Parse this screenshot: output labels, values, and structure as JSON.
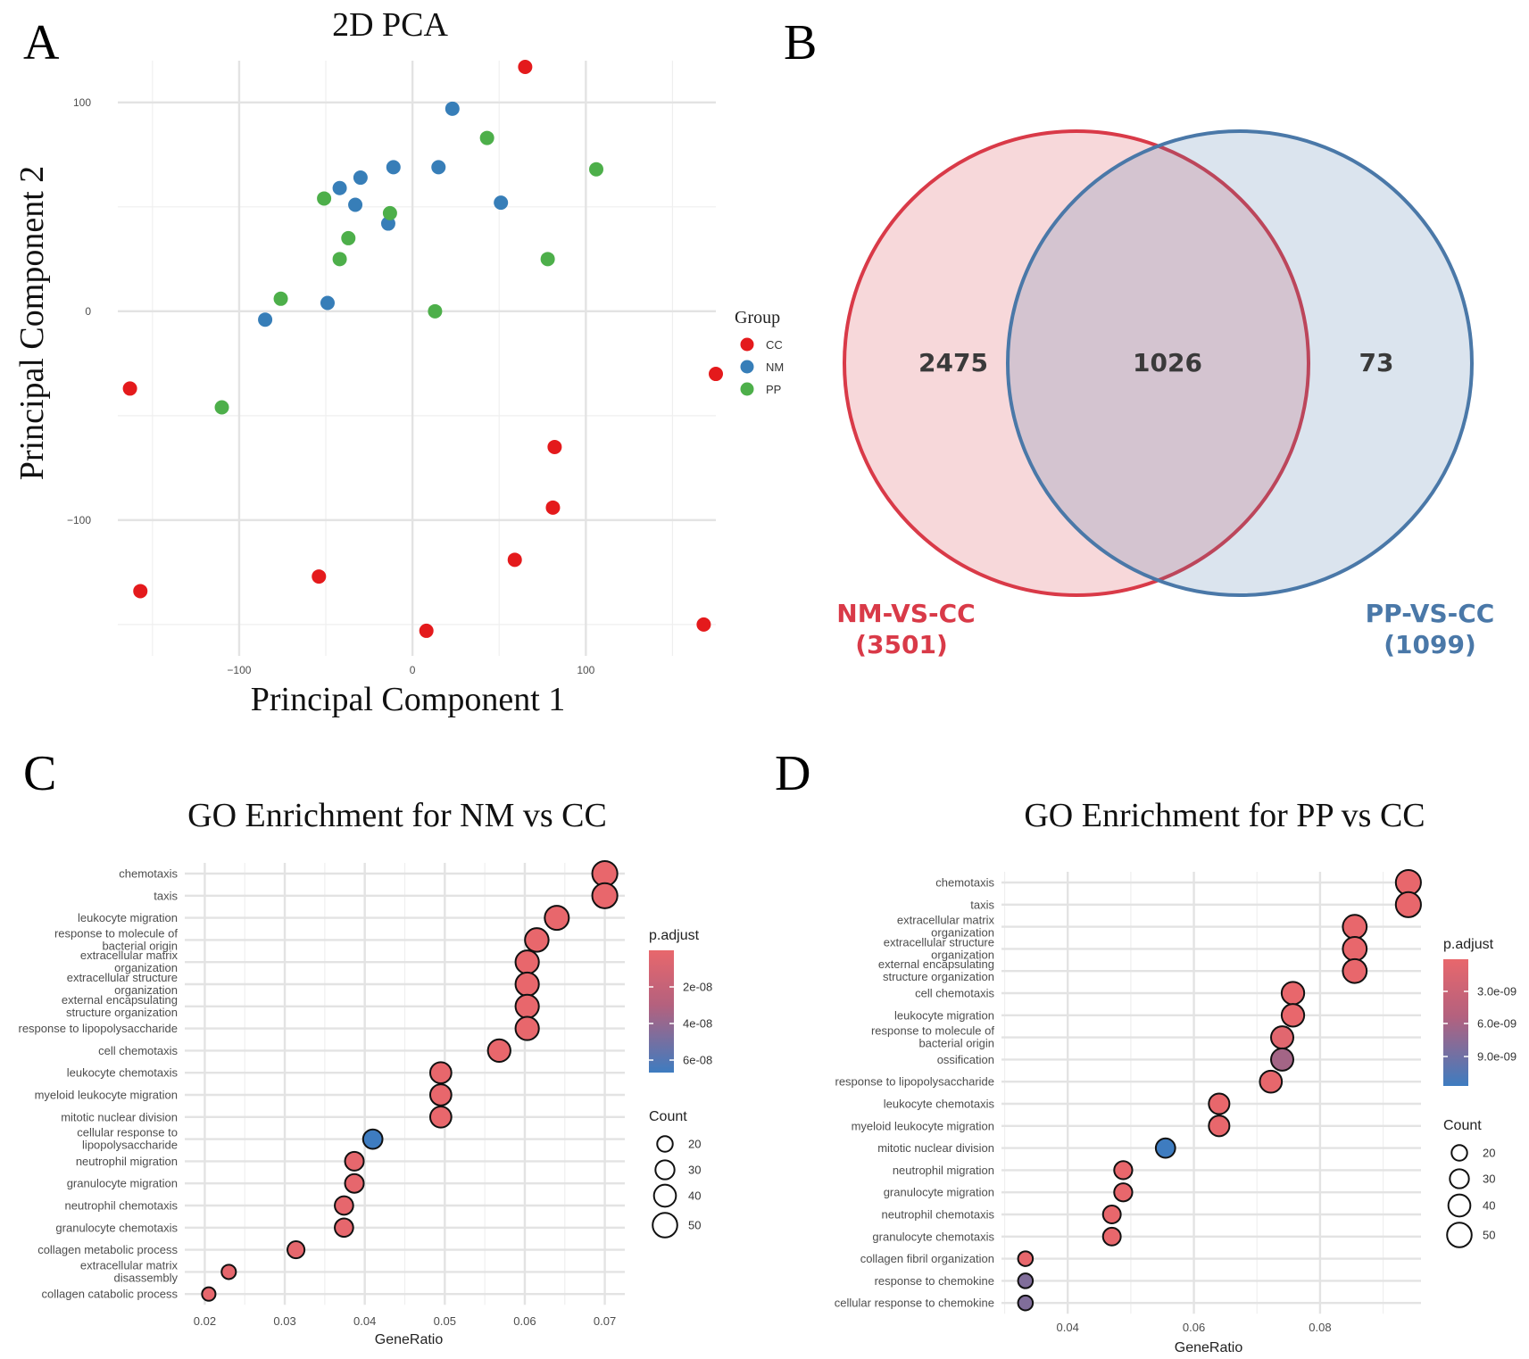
{
  "panels": {
    "A": "A",
    "B": "B",
    "C": "C",
    "D": "D"
  },
  "chart_data": [
    {
      "id": "pca",
      "type": "scatter",
      "title": "2D PCA",
      "xlabel": "Principal Component 1",
      "ylabel": "Principal Component 2",
      "xlim": [
        -170,
        175
      ],
      "ylim": [
        -165,
        120
      ],
      "xticks": [
        -100,
        0,
        100
      ],
      "xtick_labels": [
        "−100",
        "0",
        "100"
      ],
      "yticks": [
        100,
        0,
        -100
      ],
      "ytick_labels": [
        "100",
        "0",
        "−100"
      ],
      "legend": {
        "title": "Group",
        "position": "right"
      },
      "colors": {
        "CC": "#e41a1c",
        "NM": "#377eb8",
        "PP": "#4daf4a"
      },
      "series": [
        {
          "name": "CC",
          "points": [
            [
              65,
              117
            ],
            [
              -163,
              -37
            ],
            [
              175,
              -30
            ],
            [
              82,
              -65
            ],
            [
              81,
              -94
            ],
            [
              59,
              -119
            ],
            [
              -54,
              -127
            ],
            [
              -157,
              -134
            ],
            [
              8,
              -153
            ],
            [
              168,
              -150
            ]
          ]
        },
        {
          "name": "NM",
          "points": [
            [
              23,
              97
            ],
            [
              -42,
              59
            ],
            [
              -30,
              64
            ],
            [
              -11,
              69
            ],
            [
              15,
              69
            ],
            [
              -33,
              51
            ],
            [
              51,
              52
            ],
            [
              -14,
              42
            ],
            [
              -49,
              4
            ],
            [
              -85,
              -4
            ]
          ]
        },
        {
          "name": "PP",
          "points": [
            [
              43,
              83
            ],
            [
              106,
              68
            ],
            [
              -51,
              54
            ],
            [
              -13,
              47
            ],
            [
              -37,
              35
            ],
            [
              78,
              25
            ],
            [
              -42,
              25
            ],
            [
              -76,
              6
            ],
            [
              13,
              0
            ],
            [
              -110,
              -46
            ]
          ]
        }
      ]
    },
    {
      "id": "venn",
      "type": "venn",
      "sets": [
        {
          "name": "NM-VS-CC",
          "total": "(3501)",
          "only": "2475",
          "color": "#d93a48"
        },
        {
          "name": "PP-VS-CC",
          "total": "(1099)",
          "only": "73",
          "color": "#4a78a8"
        }
      ],
      "intersection": "1026"
    },
    {
      "id": "go_nm",
      "type": "scatter",
      "title": "GO Enrichment for NM vs CC",
      "xlabel": "GeneRatio",
      "xlim": [
        0.0175,
        0.0725
      ],
      "xticks": [
        0.02,
        0.03,
        0.04,
        0.05,
        0.06,
        0.07
      ],
      "xtick_labels": [
        "0.02",
        "0.03",
        "0.04",
        "0.05",
        "0.06",
        "0.07"
      ],
      "legend": {
        "color_title": "p.adjust",
        "color_ticks": [
          "2e-08",
          "4e-08",
          "6e-08"
        ],
        "size_title": "Count",
        "size_ticks": [
          "20",
          "30",
          "40",
          "50"
        ]
      },
      "terms": [
        {
          "label": [
            "chemotaxis"
          ],
          "gene_ratio": 0.07,
          "count": 52,
          "p_adjust": 1e-10
        },
        {
          "label": [
            "taxis"
          ],
          "gene_ratio": 0.07,
          "count": 52,
          "p_adjust": 1e-10
        },
        {
          "label": [
            "leukocyte migration"
          ],
          "gene_ratio": 0.064,
          "count": 48,
          "p_adjust": 1e-10
        },
        {
          "label": [
            "response to molecule of",
            "bacterial origin"
          ],
          "gene_ratio": 0.0615,
          "count": 46,
          "p_adjust": 1e-10
        },
        {
          "label": [
            "extracellular matrix",
            "organization"
          ],
          "gene_ratio": 0.0603,
          "count": 45,
          "p_adjust": 1e-10
        },
        {
          "label": [
            "extracellular structure",
            "organization"
          ],
          "gene_ratio": 0.0603,
          "count": 45,
          "p_adjust": 1e-10
        },
        {
          "label": [
            "external encapsulating",
            "structure organization"
          ],
          "gene_ratio": 0.0603,
          "count": 45,
          "p_adjust": 1e-10
        },
        {
          "label": [
            "response to lipopolysaccharide"
          ],
          "gene_ratio": 0.0603,
          "count": 45,
          "p_adjust": 1e-10
        },
        {
          "label": [
            "cell chemotaxis"
          ],
          "gene_ratio": 0.0568,
          "count": 42,
          "p_adjust": 2e-10
        },
        {
          "label": [
            "leukocyte chemotaxis"
          ],
          "gene_ratio": 0.0495,
          "count": 37,
          "p_adjust": 2e-10
        },
        {
          "label": [
            "myeloid leukocyte migration"
          ],
          "gene_ratio": 0.0495,
          "count": 37,
          "p_adjust": 2e-10
        },
        {
          "label": [
            "mitotic nuclear division"
          ],
          "gene_ratio": 0.0495,
          "count": 37,
          "p_adjust": 2e-10
        },
        {
          "label": [
            "cellular response to",
            "lipopolysaccharide"
          ],
          "gene_ratio": 0.041,
          "count": 31,
          "p_adjust": 7e-08
        },
        {
          "label": [
            "neutrophil migration"
          ],
          "gene_ratio": 0.0387,
          "count": 29,
          "p_adjust": 1e-09
        },
        {
          "label": [
            "granulocyte migration"
          ],
          "gene_ratio": 0.0387,
          "count": 29,
          "p_adjust": 1e-09
        },
        {
          "label": [
            "neutrophil chemotaxis"
          ],
          "gene_ratio": 0.0374,
          "count": 28,
          "p_adjust": 1e-09
        },
        {
          "label": [
            "granulocyte chemotaxis"
          ],
          "gene_ratio": 0.0374,
          "count": 28,
          "p_adjust": 1e-09
        },
        {
          "label": [
            "collagen metabolic process"
          ],
          "gene_ratio": 0.0314,
          "count": 24,
          "p_adjust": 1e-09
        },
        {
          "label": [
            "extracellular matrix",
            "disassembly"
          ],
          "gene_ratio": 0.023,
          "count": 17,
          "p_adjust": 1e-09
        },
        {
          "label": [
            "collagen catabolic process"
          ],
          "gene_ratio": 0.0205,
          "count": 15,
          "p_adjust": 1e-09
        }
      ]
    },
    {
      "id": "go_pp",
      "type": "scatter",
      "title": "GO Enrichment for PP vs CC",
      "xlabel": "GeneRatio",
      "xlim": [
        0.0295,
        0.096
      ],
      "xticks": [
        0.04,
        0.06,
        0.08
      ],
      "xtick_labels": [
        "0.04",
        "0.06",
        "0.08"
      ],
      "legend": {
        "color_title": "p.adjust",
        "color_ticks": [
          "3.0e-09",
          "6.0e-09",
          "9.0e-09"
        ],
        "size_title": "Count",
        "size_ticks": [
          "20",
          "30",
          "40",
          "50"
        ]
      },
      "terms": [
        {
          "label": [
            "chemotaxis"
          ],
          "gene_ratio": 0.094,
          "count": 52,
          "p_adjust": 1e-11
        },
        {
          "label": [
            "taxis"
          ],
          "gene_ratio": 0.094,
          "count": 52,
          "p_adjust": 1e-11
        },
        {
          "label": [
            "extracellular matrix",
            "organization"
          ],
          "gene_ratio": 0.0855,
          "count": 47,
          "p_adjust": 1e-11
        },
        {
          "label": [
            "extracellular structure",
            "organization"
          ],
          "gene_ratio": 0.0855,
          "count": 47,
          "p_adjust": 1e-11
        },
        {
          "label": [
            "external encapsulating",
            "structure organization"
          ],
          "gene_ratio": 0.0855,
          "count": 47,
          "p_adjust": 1e-11
        },
        {
          "label": [
            "cell chemotaxis"
          ],
          "gene_ratio": 0.0757,
          "count": 42,
          "p_adjust": 1e-11
        },
        {
          "label": [
            "leukocyte migration"
          ],
          "gene_ratio": 0.0757,
          "count": 42,
          "p_adjust": 1e-11
        },
        {
          "label": [
            "response to molecule of",
            "bacterial origin"
          ],
          "gene_ratio": 0.074,
          "count": 41,
          "p_adjust": 6e-10
        },
        {
          "label": [
            "ossification"
          ],
          "gene_ratio": 0.074,
          "count": 41,
          "p_adjust": 5.6e-09
        },
        {
          "label": [
            "response to lipopolysaccharide"
          ],
          "gene_ratio": 0.0722,
          "count": 40,
          "p_adjust": 1e-10
        },
        {
          "label": [
            "leukocyte chemotaxis"
          ],
          "gene_ratio": 0.064,
          "count": 35,
          "p_adjust": 1e-11
        },
        {
          "label": [
            "myeloid leukocyte migration"
          ],
          "gene_ratio": 0.064,
          "count": 35,
          "p_adjust": 1e-11
        },
        {
          "label": [
            "mitotic nuclear division"
          ],
          "gene_ratio": 0.0555,
          "count": 31,
          "p_adjust": 1.1e-08
        },
        {
          "label": [
            "neutrophil migration"
          ],
          "gene_ratio": 0.0488,
          "count": 27,
          "p_adjust": 1e-11
        },
        {
          "label": [
            "granulocyte migration"
          ],
          "gene_ratio": 0.0488,
          "count": 27,
          "p_adjust": 1e-11
        },
        {
          "label": [
            "neutrophil chemotaxis"
          ],
          "gene_ratio": 0.047,
          "count": 26,
          "p_adjust": 1e-11
        },
        {
          "label": [
            "granulocyte chemotaxis"
          ],
          "gene_ratio": 0.047,
          "count": 26,
          "p_adjust": 1e-11
        },
        {
          "label": [
            "collagen fibril organization"
          ],
          "gene_ratio": 0.0333,
          "count": 18,
          "p_adjust": 1e-11
        },
        {
          "label": [
            "response to chemokine"
          ],
          "gene_ratio": 0.0333,
          "count": 18,
          "p_adjust": 7.5e-09
        },
        {
          "label": [
            "cellular response to chemokine"
          ],
          "gene_ratio": 0.0333,
          "count": 18,
          "p_adjust": 7.5e-09
        }
      ]
    }
  ]
}
